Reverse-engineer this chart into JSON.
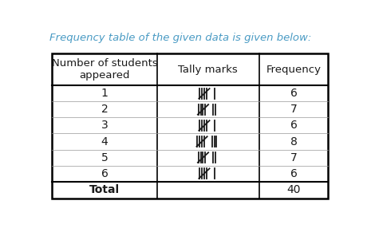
{
  "title": "Frequency table of the given data is given below:",
  "title_color": "#4a9bc4",
  "title_fontsize": 9.5,
  "col_headers": [
    "Number of students\nappeared",
    "Tally marks",
    "Frequency"
  ],
  "rows": [
    [
      "1",
      6,
      "6"
    ],
    [
      "2",
      7,
      "7"
    ],
    [
      "3",
      6,
      "6"
    ],
    [
      "4",
      8,
      "8"
    ],
    [
      "5",
      7,
      "7"
    ],
    [
      "6",
      6,
      "6"
    ]
  ],
  "total_row": [
    "Total",
    "",
    "40"
  ],
  "background_color": "#ffffff",
  "text_color": "#1a1a1a",
  "header_fontsize": 9.5,
  "data_fontsize": 10,
  "total_fontsize": 10
}
